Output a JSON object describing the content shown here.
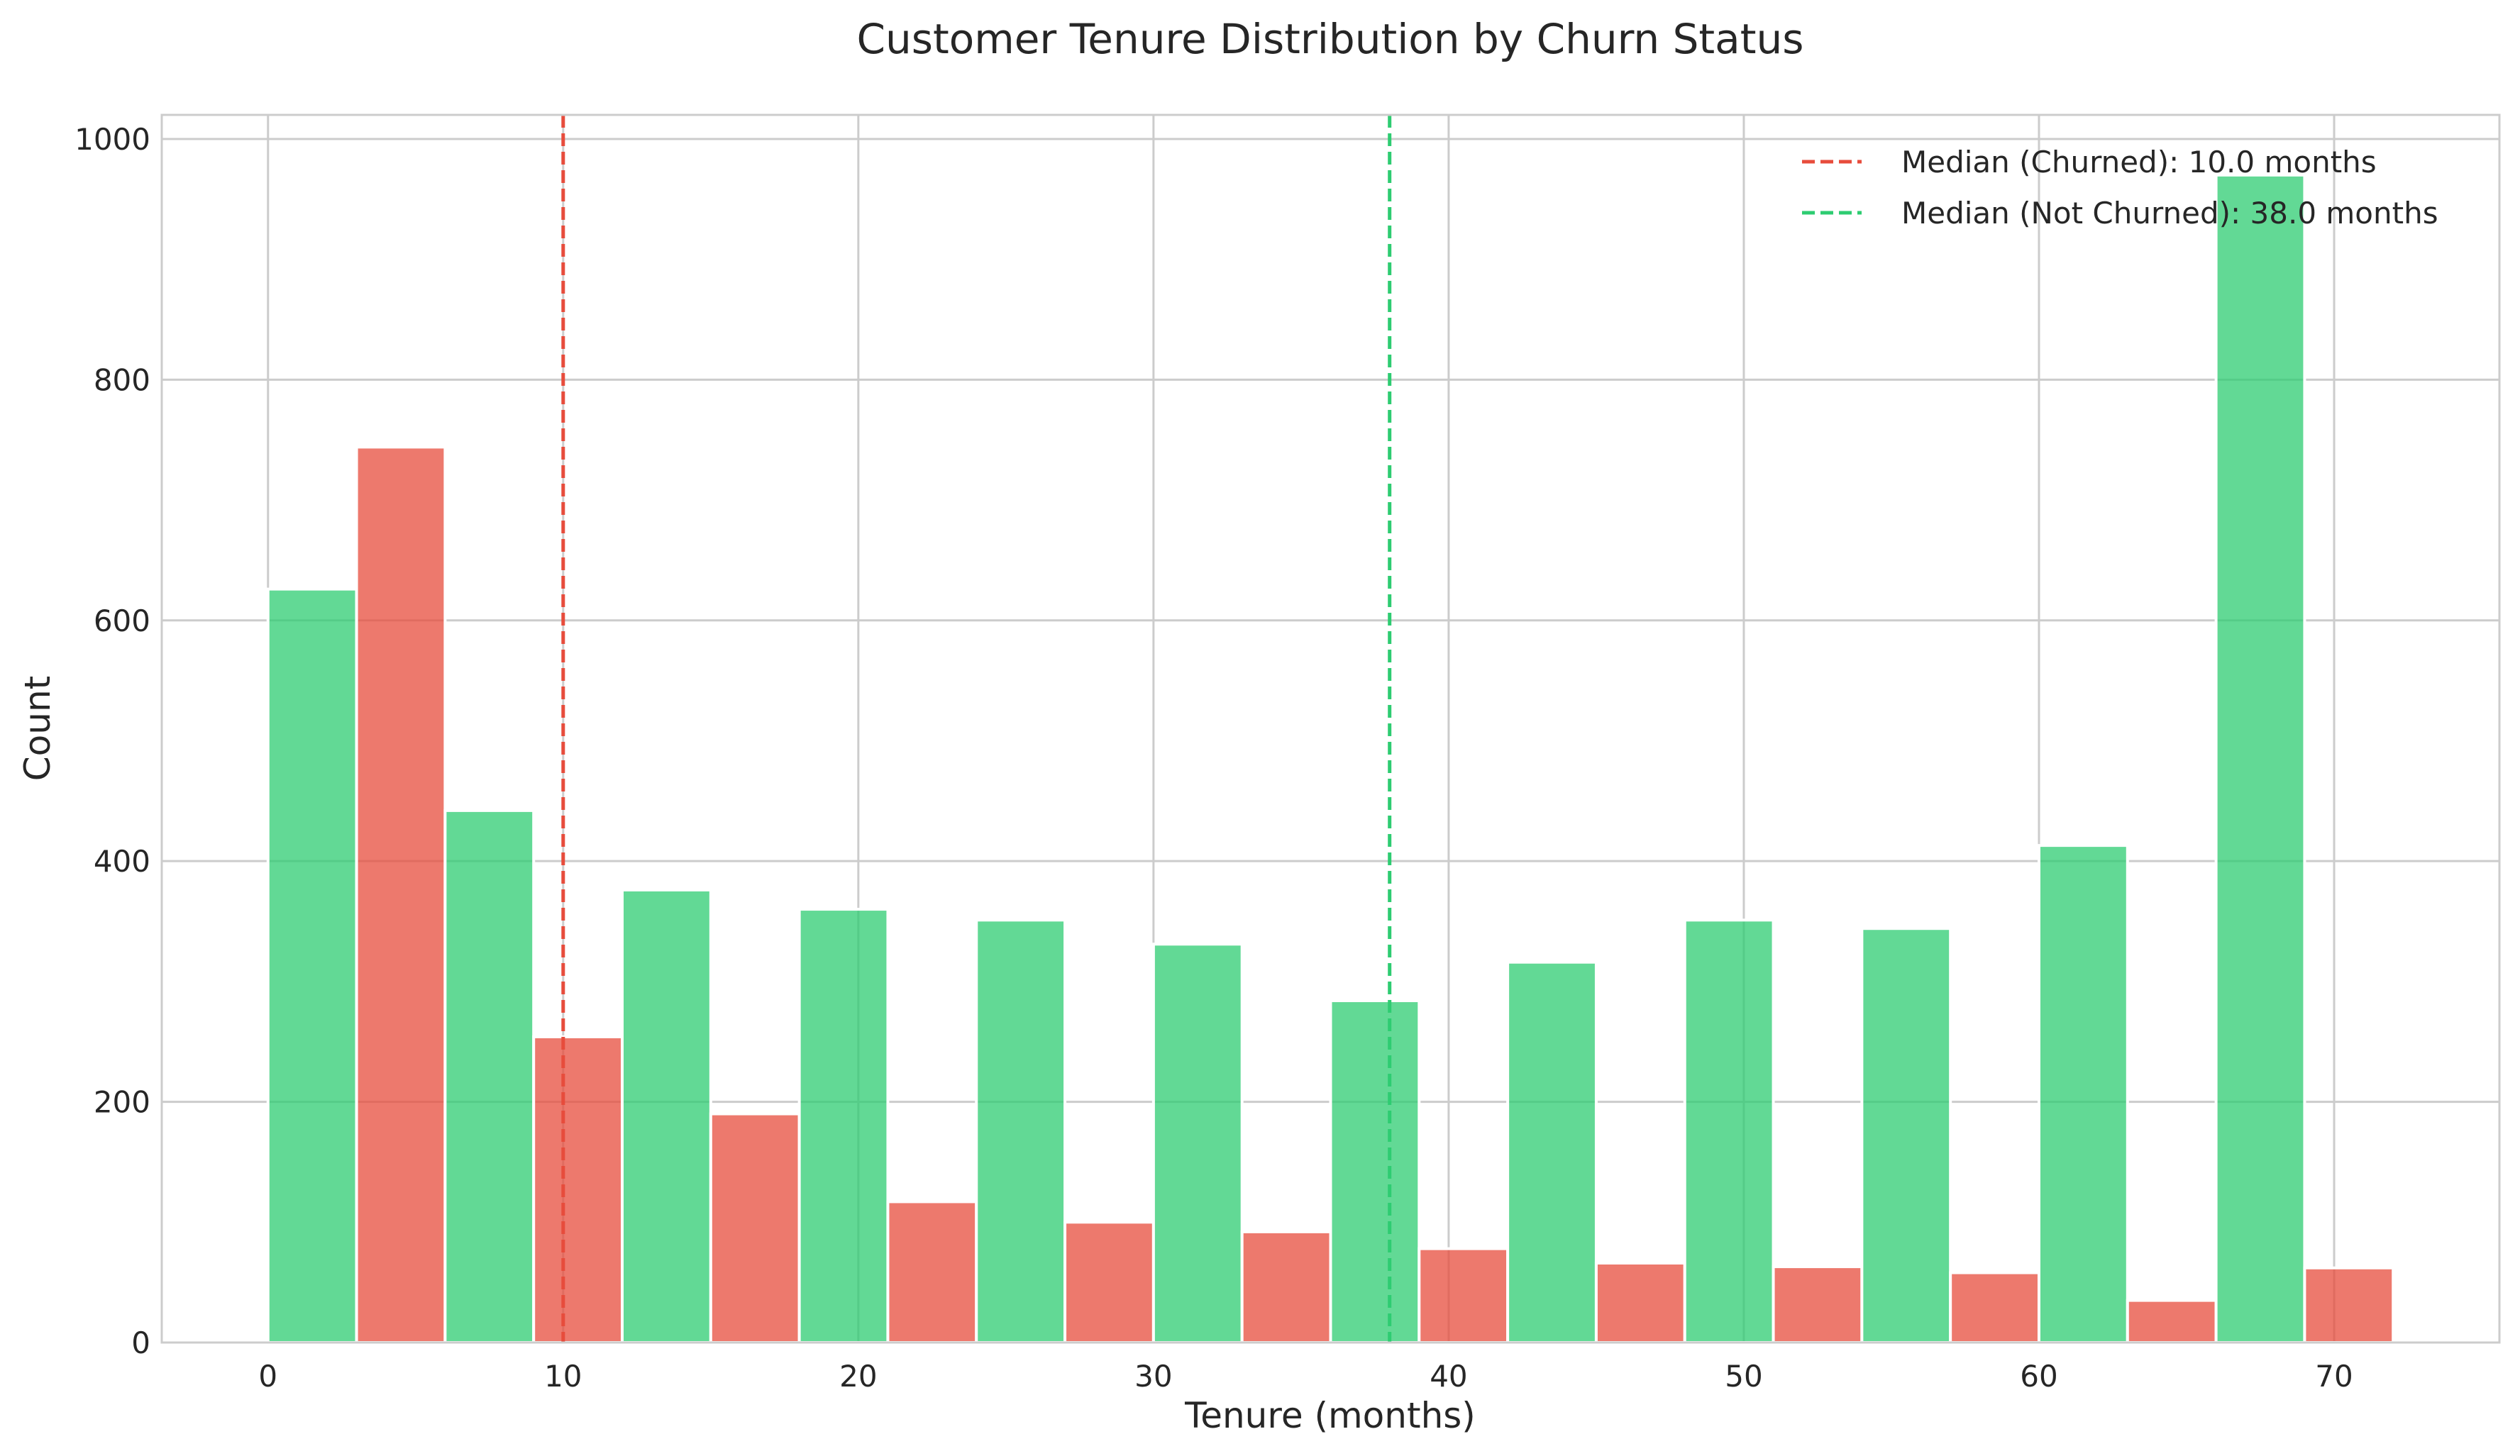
{
  "chart_data": {
    "type": "bar",
    "title": "Customer Tenure Distribution by Churn Status",
    "xlabel": "Tenure (months)",
    "ylabel": "Count",
    "xlim": [
      -3.6,
      75.6
    ],
    "ylim": [
      0,
      1020
    ],
    "x_ticks": [
      0,
      10,
      20,
      30,
      40,
      50,
      60,
      70
    ],
    "y_ticks": [
      0,
      200,
      400,
      600,
      800,
      1000
    ],
    "grid": true,
    "legend_position": "top-right",
    "bars": [
      {
        "series": "Not Churned",
        "x0": 0,
        "x1": 3,
        "value": 626
      },
      {
        "series": "Churned",
        "x0": 3,
        "x1": 6,
        "value": 744
      },
      {
        "series": "Not Churned",
        "x0": 6,
        "x1": 9,
        "value": 442
      },
      {
        "series": "Churned",
        "x0": 9,
        "x1": 12,
        "value": 254
      },
      {
        "series": "Not Churned",
        "x0": 12,
        "x1": 15,
        "value": 376
      },
      {
        "series": "Churned",
        "x0": 15,
        "x1": 18,
        "value": 190
      },
      {
        "series": "Not Churned",
        "x0": 18,
        "x1": 21,
        "value": 360
      },
      {
        "series": "Churned",
        "x0": 21,
        "x1": 24,
        "value": 117
      },
      {
        "series": "Not Churned",
        "x0": 24,
        "x1": 27,
        "value": 351
      },
      {
        "series": "Churned",
        "x0": 27,
        "x1": 30,
        "value": 100
      },
      {
        "series": "Not Churned",
        "x0": 30,
        "x1": 33,
        "value": 331
      },
      {
        "series": "Churned",
        "x0": 33,
        "x1": 36,
        "value": 92
      },
      {
        "series": "Not Churned",
        "x0": 36,
        "x1": 39,
        "value": 284
      },
      {
        "series": "Churned",
        "x0": 39,
        "x1": 42,
        "value": 78
      },
      {
        "series": "Not Churned",
        "x0": 42,
        "x1": 45,
        "value": 316
      },
      {
        "series": "Churned",
        "x0": 45,
        "x1": 48,
        "value": 66
      },
      {
        "series": "Not Churned",
        "x0": 48,
        "x1": 51,
        "value": 351
      },
      {
        "series": "Churned",
        "x0": 51,
        "x1": 54,
        "value": 63
      },
      {
        "series": "Not Churned",
        "x0": 54,
        "x1": 57,
        "value": 344
      },
      {
        "series": "Churned",
        "x0": 57,
        "x1": 60,
        "value": 58
      },
      {
        "series": "Not Churned",
        "x0": 60,
        "x1": 63,
        "value": 413
      },
      {
        "series": "Churned",
        "x0": 63,
        "x1": 66,
        "value": 35
      },
      {
        "series": "Not Churned",
        "x0": 66,
        "x1": 69,
        "value": 970
      },
      {
        "series": "Churned",
        "x0": 69,
        "x1": 72,
        "value": 62
      }
    ],
    "reference_lines": [
      {
        "x": 10.0,
        "label": "Median (Churned): 10.0 months",
        "color": "#e74c3c",
        "style": "dashed"
      },
      {
        "x": 38.0,
        "label": "Median (Not Churned): 38.0 months",
        "color": "#2ecc71",
        "style": "dashed"
      }
    ],
    "colors": {
      "Churned": "#e74c3c",
      "Not Churned": "#2ecc71"
    }
  }
}
